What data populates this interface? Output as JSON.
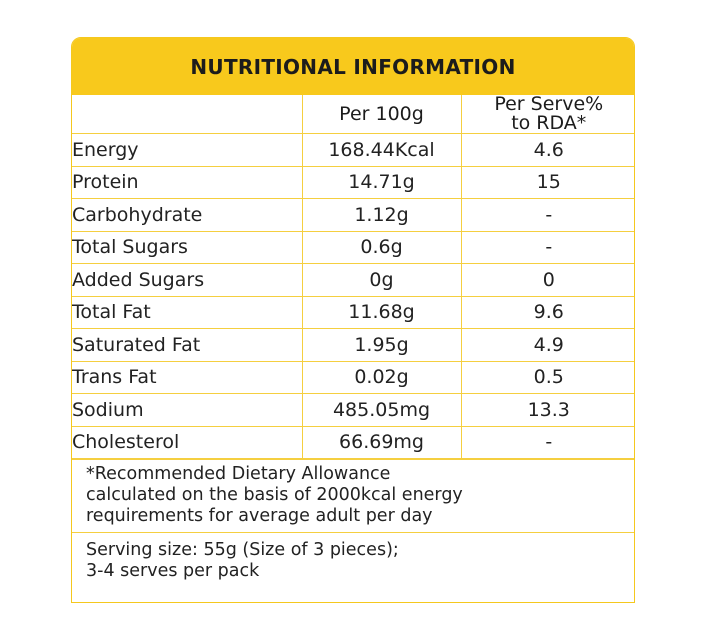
{
  "title": "NUTRITIONAL INFORMATION",
  "columns": {
    "nutrient": "",
    "per100g": "Per 100g",
    "per_serve_line1": "Per Serve%",
    "per_serve_line2": "to RDA*"
  },
  "rows": [
    {
      "nutrient": "Energy",
      "per100g": "168.44Kcal",
      "rda": "4.6"
    },
    {
      "nutrient": "Protein",
      "per100g": "14.71g",
      "rda": "15"
    },
    {
      "nutrient": "Carbohydrate",
      "per100g": "1.12g",
      "rda": "-"
    },
    {
      "nutrient": "Total Sugars",
      "per100g": "0.6g",
      "rda": "-"
    },
    {
      "nutrient": "Added Sugars",
      "per100g": "0g",
      "rda": "0"
    },
    {
      "nutrient": "Total Fat",
      "per100g": "11.68g",
      "rda": "9.6"
    },
    {
      "nutrient": "Saturated Fat",
      "per100g": "1.95g",
      "rda": "4.9"
    },
    {
      "nutrient": "Trans Fat",
      "per100g": "0.02g",
      "rda": "0.5"
    },
    {
      "nutrient": "Sodium",
      "per100g": "485.05mg",
      "rda": "13.3"
    },
    {
      "nutrient": "Cholesterol",
      "per100g": "66.69mg",
      "rda": "-"
    }
  ],
  "footnote": {
    "line1": "*Recommended Dietary Allowance",
    "line2": "calculated on the basis of 2000kcal energy",
    "line3": "requirements for average adult per day"
  },
  "serving": {
    "line1": "Serving size: 55g (Size of 3 pieces);",
    "line2": "3-4 serves per pack"
  },
  "colors": {
    "header_bg": "#f8c91c",
    "border": "#f5cf40"
  }
}
